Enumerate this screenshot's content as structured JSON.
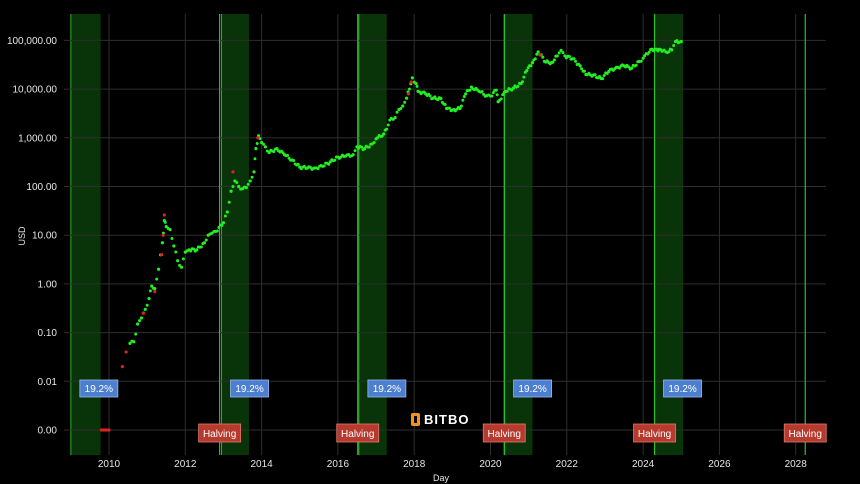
{
  "chart_data": {
    "type": "scatter",
    "title": "",
    "xlabel": "Day",
    "ylabel": "USD",
    "x_range": [
      2009.0,
      2028.8
    ],
    "ylim": [
      0.001,
      300000
    ],
    "y_scale": "log",
    "y_ticks": [
      {
        "value": 0.001,
        "label": "0.00"
      },
      {
        "value": 0.01,
        "label": "0.01"
      },
      {
        "value": 0.1,
        "label": "0.10"
      },
      {
        "value": 1,
        "label": "1.00"
      },
      {
        "value": 10,
        "label": "10.00"
      },
      {
        "value": 100,
        "label": "100.00"
      },
      {
        "value": 1000,
        "label": "1,000.00"
      },
      {
        "value": 10000,
        "label": "10,000.00"
      },
      {
        "value": 100000,
        "label": "100,000.00"
      }
    ],
    "x_ticks": [
      {
        "value": 2010,
        "label": "2010"
      },
      {
        "value": 2012,
        "label": "2012"
      },
      {
        "value": 2014,
        "label": "2014"
      },
      {
        "value": 2016,
        "label": "2016"
      },
      {
        "value": 2018,
        "label": "2018"
      },
      {
        "value": 2020,
        "label": "2020"
      },
      {
        "value": 2022,
        "label": "2022"
      },
      {
        "value": 2024,
        "label": "2024"
      },
      {
        "value": 2026,
        "label": "2026"
      },
      {
        "value": 2028,
        "label": "2028"
      }
    ],
    "grid": true,
    "shaded_periods": [
      {
        "start": 2009.0,
        "end": 2009.78,
        "label": "19.2%"
      },
      {
        "start": 2012.95,
        "end": 2013.67,
        "label": "19.2%"
      },
      {
        "start": 2016.55,
        "end": 2017.28,
        "label": "19.2%"
      },
      {
        "start": 2020.37,
        "end": 2021.1,
        "label": "19.2%"
      },
      {
        "start": 2024.3,
        "end": 2025.05,
        "label": "19.2%"
      }
    ],
    "halvings": [
      {
        "x": 2012.9,
        "label": "Halving"
      },
      {
        "x": 2016.52,
        "label": "Halving"
      },
      {
        "x": 2020.36,
        "label": "Halving"
      },
      {
        "x": 2024.3,
        "label": "Halving"
      },
      {
        "x": 2028.25,
        "label": "Halving"
      }
    ],
    "series": [
      {
        "color": "#22ee22",
        "points": [
          [
            2010.55,
            0.06
          ],
          [
            2010.65,
            0.065
          ],
          [
            2010.75,
            0.15
          ],
          [
            2010.85,
            0.2
          ],
          [
            2010.95,
            0.3
          ],
          [
            2011.05,
            0.5
          ],
          [
            2011.12,
            0.9
          ],
          [
            2011.2,
            0.8
          ],
          [
            2011.3,
            2
          ],
          [
            2011.4,
            7
          ],
          [
            2011.45,
            20
          ],
          [
            2011.5,
            15
          ],
          [
            2011.6,
            13
          ],
          [
            2011.7,
            6
          ],
          [
            2011.8,
            3
          ],
          [
            2011.9,
            2.2
          ],
          [
            2012.0,
            4.5
          ],
          [
            2012.1,
            5
          ],
          [
            2012.3,
            5
          ],
          [
            2012.5,
            7
          ],
          [
            2012.6,
            10
          ],
          [
            2012.7,
            11
          ],
          [
            2012.8,
            12
          ],
          [
            2013.0,
            18
          ],
          [
            2013.1,
            30
          ],
          [
            2013.2,
            80
          ],
          [
            2013.3,
            130
          ],
          [
            2013.4,
            100
          ],
          [
            2013.5,
            90
          ],
          [
            2013.6,
            95
          ],
          [
            2013.7,
            130
          ],
          [
            2013.8,
            200
          ],
          [
            2013.85,
            600
          ],
          [
            2013.92,
            1100
          ],
          [
            2014.0,
            800
          ],
          [
            2014.1,
            650
          ],
          [
            2014.2,
            500
          ],
          [
            2014.4,
            600
          ],
          [
            2014.6,
            450
          ],
          [
            2014.8,
            350
          ],
          [
            2015.0,
            250
          ],
          [
            2015.2,
            240
          ],
          [
            2015.4,
            240
          ],
          [
            2015.6,
            260
          ],
          [
            2015.8,
            320
          ],
          [
            2016.0,
            400
          ],
          [
            2016.2,
            420
          ],
          [
            2016.4,
            450
          ],
          [
            2016.5,
            650
          ],
          [
            2016.7,
            600
          ],
          [
            2016.9,
            750
          ],
          [
            2017.0,
            950
          ],
          [
            2017.2,
            1200
          ],
          [
            2017.4,
            2500
          ],
          [
            2017.5,
            2600
          ],
          [
            2017.6,
            3800
          ],
          [
            2017.7,
            4500
          ],
          [
            2017.8,
            6500
          ],
          [
            2017.95,
            17000
          ],
          [
            2018.05,
            13000
          ],
          [
            2018.1,
            9000
          ],
          [
            2018.3,
            8000
          ],
          [
            2018.5,
            6500
          ],
          [
            2018.7,
            6400
          ],
          [
            2018.85,
            4000
          ],
          [
            2019.0,
            3700
          ],
          [
            2019.2,
            4000
          ],
          [
            2019.35,
            8000
          ],
          [
            2019.5,
            11000
          ],
          [
            2019.7,
            9000
          ],
          [
            2019.9,
            7300
          ],
          [
            2020.0,
            7200
          ],
          [
            2020.15,
            9500
          ],
          [
            2020.2,
            5500
          ],
          [
            2020.4,
            9000
          ],
          [
            2020.6,
            10500
          ],
          [
            2020.8,
            13000
          ],
          [
            2020.95,
            24000
          ],
          [
            2021.1,
            35000
          ],
          [
            2021.25,
            58000
          ],
          [
            2021.45,
            36000
          ],
          [
            2021.6,
            35000
          ],
          [
            2021.75,
            48000
          ],
          [
            2021.85,
            62000
          ],
          [
            2021.95,
            48000
          ],
          [
            2022.15,
            42000
          ],
          [
            2022.35,
            30000
          ],
          [
            2022.5,
            20000
          ],
          [
            2022.7,
            19500
          ],
          [
            2022.9,
            16500
          ],
          [
            2023.1,
            23000
          ],
          [
            2023.3,
            28000
          ],
          [
            2023.5,
            30000
          ],
          [
            2023.7,
            27000
          ],
          [
            2023.9,
            37000
          ],
          [
            2024.0,
            43000
          ],
          [
            2024.2,
            65000
          ],
          [
            2024.35,
            66000
          ],
          [
            2024.5,
            60000
          ],
          [
            2024.6,
            58000
          ],
          [
            2024.75,
            64000
          ],
          [
            2024.85,
            95000
          ],
          [
            2025.0,
            95000
          ]
        ]
      },
      {
        "color": "#dd2222",
        "points": [
          [
            2009.8,
            0.001
          ],
          [
            2009.85,
            0.001
          ],
          [
            2009.9,
            0.001
          ],
          [
            2009.95,
            0.001
          ],
          [
            2010.0,
            0.001
          ],
          [
            2010.2,
            0.005
          ],
          [
            2010.35,
            0.02
          ],
          [
            2010.45,
            0.04
          ],
          [
            2010.9,
            0.25
          ],
          [
            2011.2,
            0.7
          ],
          [
            2011.38,
            4
          ],
          [
            2011.42,
            10
          ],
          [
            2011.45,
            26
          ],
          [
            2013.25,
            200
          ],
          [
            2013.9,
            1000
          ],
          [
            2017.85,
            8000
          ],
          [
            2017.92,
            14000
          ],
          [
            2021.3,
            50000
          ]
        ]
      }
    ]
  },
  "logo": {
    "text": "BITBO"
  }
}
